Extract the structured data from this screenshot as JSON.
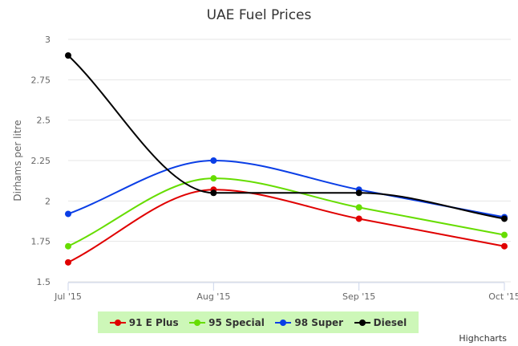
{
  "chart_data": {
    "type": "line",
    "title": "UAE Fuel Prices",
    "xlabel": "",
    "ylabel": "Dirhams per litre",
    "categories": [
      "Jul '15",
      "Aug '15",
      "Sep '15",
      "Oct '15"
    ],
    "ylim": [
      1.5,
      3
    ],
    "yticks": [
      "1.5",
      "1.75",
      "2",
      "2.25",
      "2.5",
      "2.75",
      "3"
    ],
    "grid": true,
    "legend_position": "bottom",
    "series": [
      {
        "name": "91 E Plus",
        "color": "#e00000",
        "values": [
          1.62,
          2.07,
          1.89,
          1.72
        ]
      },
      {
        "name": "95 Special",
        "color": "#66dd00",
        "values": [
          1.72,
          2.14,
          1.96,
          1.79
        ]
      },
      {
        "name": "98 Super",
        "color": "#0a3ee6",
        "values": [
          1.92,
          2.25,
          2.07,
          1.9
        ]
      },
      {
        "name": "Diesel",
        "color": "#000000",
        "values": [
          2.9,
          2.05,
          2.05,
          1.89
        ]
      }
    ]
  },
  "credits": "Highcharts"
}
